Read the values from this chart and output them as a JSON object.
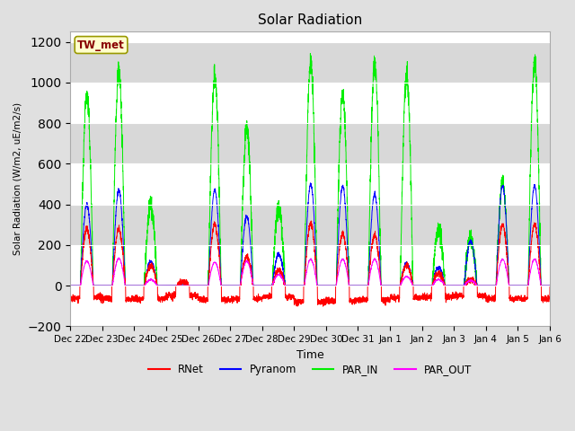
{
  "title": "Solar Radiation",
  "ylabel": "Solar Radiation (W/m2, uE/m2/s)",
  "xlabel": "Time",
  "ylim": [
    -200,
    1250
  ],
  "yticks": [
    -200,
    0,
    200,
    400,
    600,
    800,
    1000,
    1200
  ],
  "fig_bg_color": "#e0e0e0",
  "plot_bg_color": "#ffffff",
  "grid_color": "#cccccc",
  "annotation": "TW_met",
  "annotation_color": "#880000",
  "annotation_bg": "#ffffcc",
  "annotation_border": "#999900",
  "series_colors": {
    "RNet": "#ff0000",
    "Pyranom": "#0000ff",
    "PAR_IN": "#00ee00",
    "PAR_OUT": "#ff00ff"
  },
  "x_tick_labels": [
    "Dec 22",
    "Dec 23",
    "Dec 24",
    "Dec 25",
    "Dec 26",
    "Dec 27",
    "Dec 28",
    "Dec 29",
    "Dec 30",
    "Dec 31",
    "Jan 1",
    "Jan 2",
    "Jan 3",
    "Jan 4",
    "Jan 5",
    "Jan 6"
  ],
  "num_days": 15,
  "par_in_peaks": [
    940,
    1055,
    400,
    5,
    1030,
    780,
    390,
    1100,
    940,
    1090,
    1030,
    280,
    230,
    510,
    1100
  ],
  "pyranom_peaks": [
    400,
    470,
    120,
    5,
    470,
    340,
    155,
    500,
    490,
    450,
    110,
    90,
    220,
    490,
    490
  ],
  "rnet_peaks": [
    280,
    280,
    100,
    20,
    300,
    145,
    75,
    305,
    255,
    250,
    100,
    60,
    30,
    300,
    300
  ],
  "par_out_peaks": [
    120,
    135,
    30,
    0,
    115,
    120,
    55,
    130,
    130,
    130,
    45,
    30,
    25,
    130,
    130
  ],
  "rnet_night": [
    -60,
    -65,
    -65,
    -50,
    -70,
    -65,
    -55,
    -80,
    -75,
    -70,
    -60,
    -55,
    -50,
    -65,
    -65
  ]
}
